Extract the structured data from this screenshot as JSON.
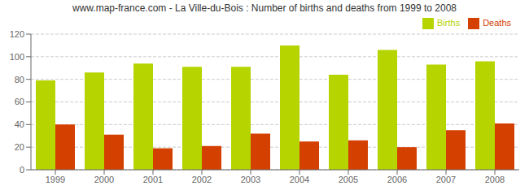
{
  "chart_data": {
    "type": "bar",
    "title": "www.map-france.com - La Ville-du-Bois : Number of births and deaths from 1999 to 2008",
    "categories": [
      "1999",
      "2000",
      "2001",
      "2002",
      "2003",
      "2004",
      "2005",
      "2006",
      "2007",
      "2008"
    ],
    "series": [
      {
        "name": "Births",
        "color": "#b5d400",
        "values": [
          79,
          86,
          94,
          91,
          91,
          110,
          84,
          106,
          93,
          96
        ]
      },
      {
        "name": "Deaths",
        "color": "#d44000",
        "values": [
          40,
          31,
          19,
          21,
          32,
          25,
          26,
          20,
          35,
          41
        ]
      }
    ],
    "ylim": [
      0,
      120
    ],
    "yticks": [
      0,
      20,
      40,
      60,
      80,
      100,
      120
    ],
    "grid": true,
    "legend": "upper right"
  }
}
